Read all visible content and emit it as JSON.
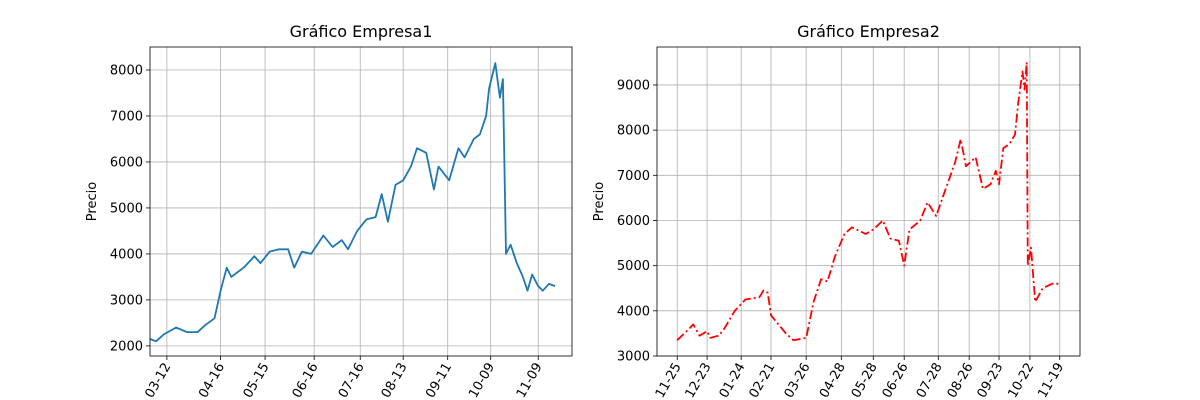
{
  "chart_data": [
    {
      "type": "line",
      "title": "Gráfico Empresa1",
      "ylabel": "Precio",
      "color": "#1f77b4",
      "linestyle": "solid",
      "grid": true,
      "x": [
        "03-01",
        "03-05",
        "03-10",
        "03-18",
        "03-25",
        "04-01",
        "04-06",
        "04-12",
        "04-16",
        "04-20",
        "04-23",
        "05-01",
        "05-08",
        "05-12",
        "05-18",
        "05-24",
        "05-30",
        "06-03",
        "06-08",
        "06-14",
        "06-22",
        "06-28",
        "07-04",
        "07-08",
        "07-14",
        "07-20",
        "07-26",
        "07-30",
        "08-03",
        "08-08",
        "08-13",
        "08-18",
        "08-22",
        "08-28",
        "09-02",
        "09-05",
        "09-12",
        "09-18",
        "09-22",
        "09-28",
        "10-02",
        "10-06",
        "10-08",
        "10-12",
        "10-15",
        "10-17",
        "10-19",
        "10-22",
        "10-26",
        "10-30",
        "11-02",
        "11-05",
        "11-09",
        "11-12",
        "11-16",
        "11-20"
      ],
      "values": [
        2150,
        2100,
        2250,
        2400,
        2300,
        2300,
        2450,
        2600,
        3200,
        3700,
        3500,
        3700,
        3950,
        3800,
        4050,
        4100,
        4100,
        3700,
        4050,
        4000,
        4400,
        4150,
        4300,
        4100,
        4500,
        4750,
        4800,
        5300,
        4700,
        5500,
        5600,
        5900,
        6300,
        6200,
        5400,
        5900,
        5600,
        6300,
        6100,
        6500,
        6600,
        7000,
        7600,
        8150,
        7400,
        7800,
        4000,
        4200,
        3800,
        3500,
        3200,
        3550,
        3300,
        3200,
        3350,
        3300
      ],
      "xlim": [
        "02-29",
        "12-01"
      ],
      "xticks": [
        "03-12",
        "04-16",
        "05-15",
        "06-16",
        "07-16",
        "08-13",
        "09-11",
        "10-09",
        "11-09"
      ],
      "ylim": [
        1780,
        8500
      ],
      "yticks": [
        2000,
        3000,
        4000,
        5000,
        6000,
        7000,
        8000
      ]
    },
    {
      "type": "line",
      "title": "Gráfico Empresa2",
      "ylabel": "Precio",
      "color": "#ff0000",
      "linestyle": "dashdot",
      "grid": true,
      "x": [
        "11-25",
        "12-06",
        "12-10",
        "12-16",
        "12-23",
        "12-26",
        "01-03",
        "01-08",
        "01-18",
        "01-28",
        "02-10",
        "02-14",
        "02-18",
        "02-21",
        "02-28",
        "03-07",
        "03-14",
        "03-26",
        "04-02",
        "04-09",
        "04-15",
        "04-22",
        "05-01",
        "05-08",
        "05-21",
        "05-28",
        "06-06",
        "06-13",
        "06-21",
        "06-26",
        "07-01",
        "07-11",
        "07-18",
        "07-26",
        "08-04",
        "08-13",
        "08-18",
        "08-23",
        "09-01",
        "09-08",
        "09-15",
        "09-20",
        "09-23",
        "09-27",
        "10-03",
        "10-08",
        "10-11",
        "10-15",
        "10-17",
        "10-19",
        "10-20",
        "10-23",
        "10-27",
        "11-03",
        "11-12",
        "11-19"
      ],
      "values": [
        3350,
        3600,
        3700,
        3450,
        3550,
        3400,
        3450,
        3600,
        4000,
        4250,
        4300,
        4450,
        4400,
        3900,
        3700,
        3500,
        3350,
        3400,
        4200,
        4700,
        4650,
        5200,
        5700,
        5850,
        5700,
        5800,
        6000,
        5600,
        5550,
        5000,
        5800,
        6000,
        6400,
        6100,
        6700,
        7300,
        7800,
        7200,
        7400,
        6700,
        6800,
        7100,
        6800,
        7600,
        7700,
        7900,
        8600,
        9300,
        8900,
        9500,
        5000,
        5400,
        4200,
        4500,
        4600,
        4600
      ],
      "xlim": [
        "11-06",
        "12-08"
      ],
      "xticks": [
        "11-25",
        "12-23",
        "01-24",
        "02-21",
        "03-26",
        "04-28",
        "05-28",
        "06-26",
        "07-28",
        "08-26",
        "09-23",
        "10-22",
        "11-19"
      ],
      "ylim": [
        3000,
        9840
      ],
      "yticks": [
        3000,
        4000,
        5000,
        6000,
        7000,
        8000,
        9000
      ]
    }
  ]
}
